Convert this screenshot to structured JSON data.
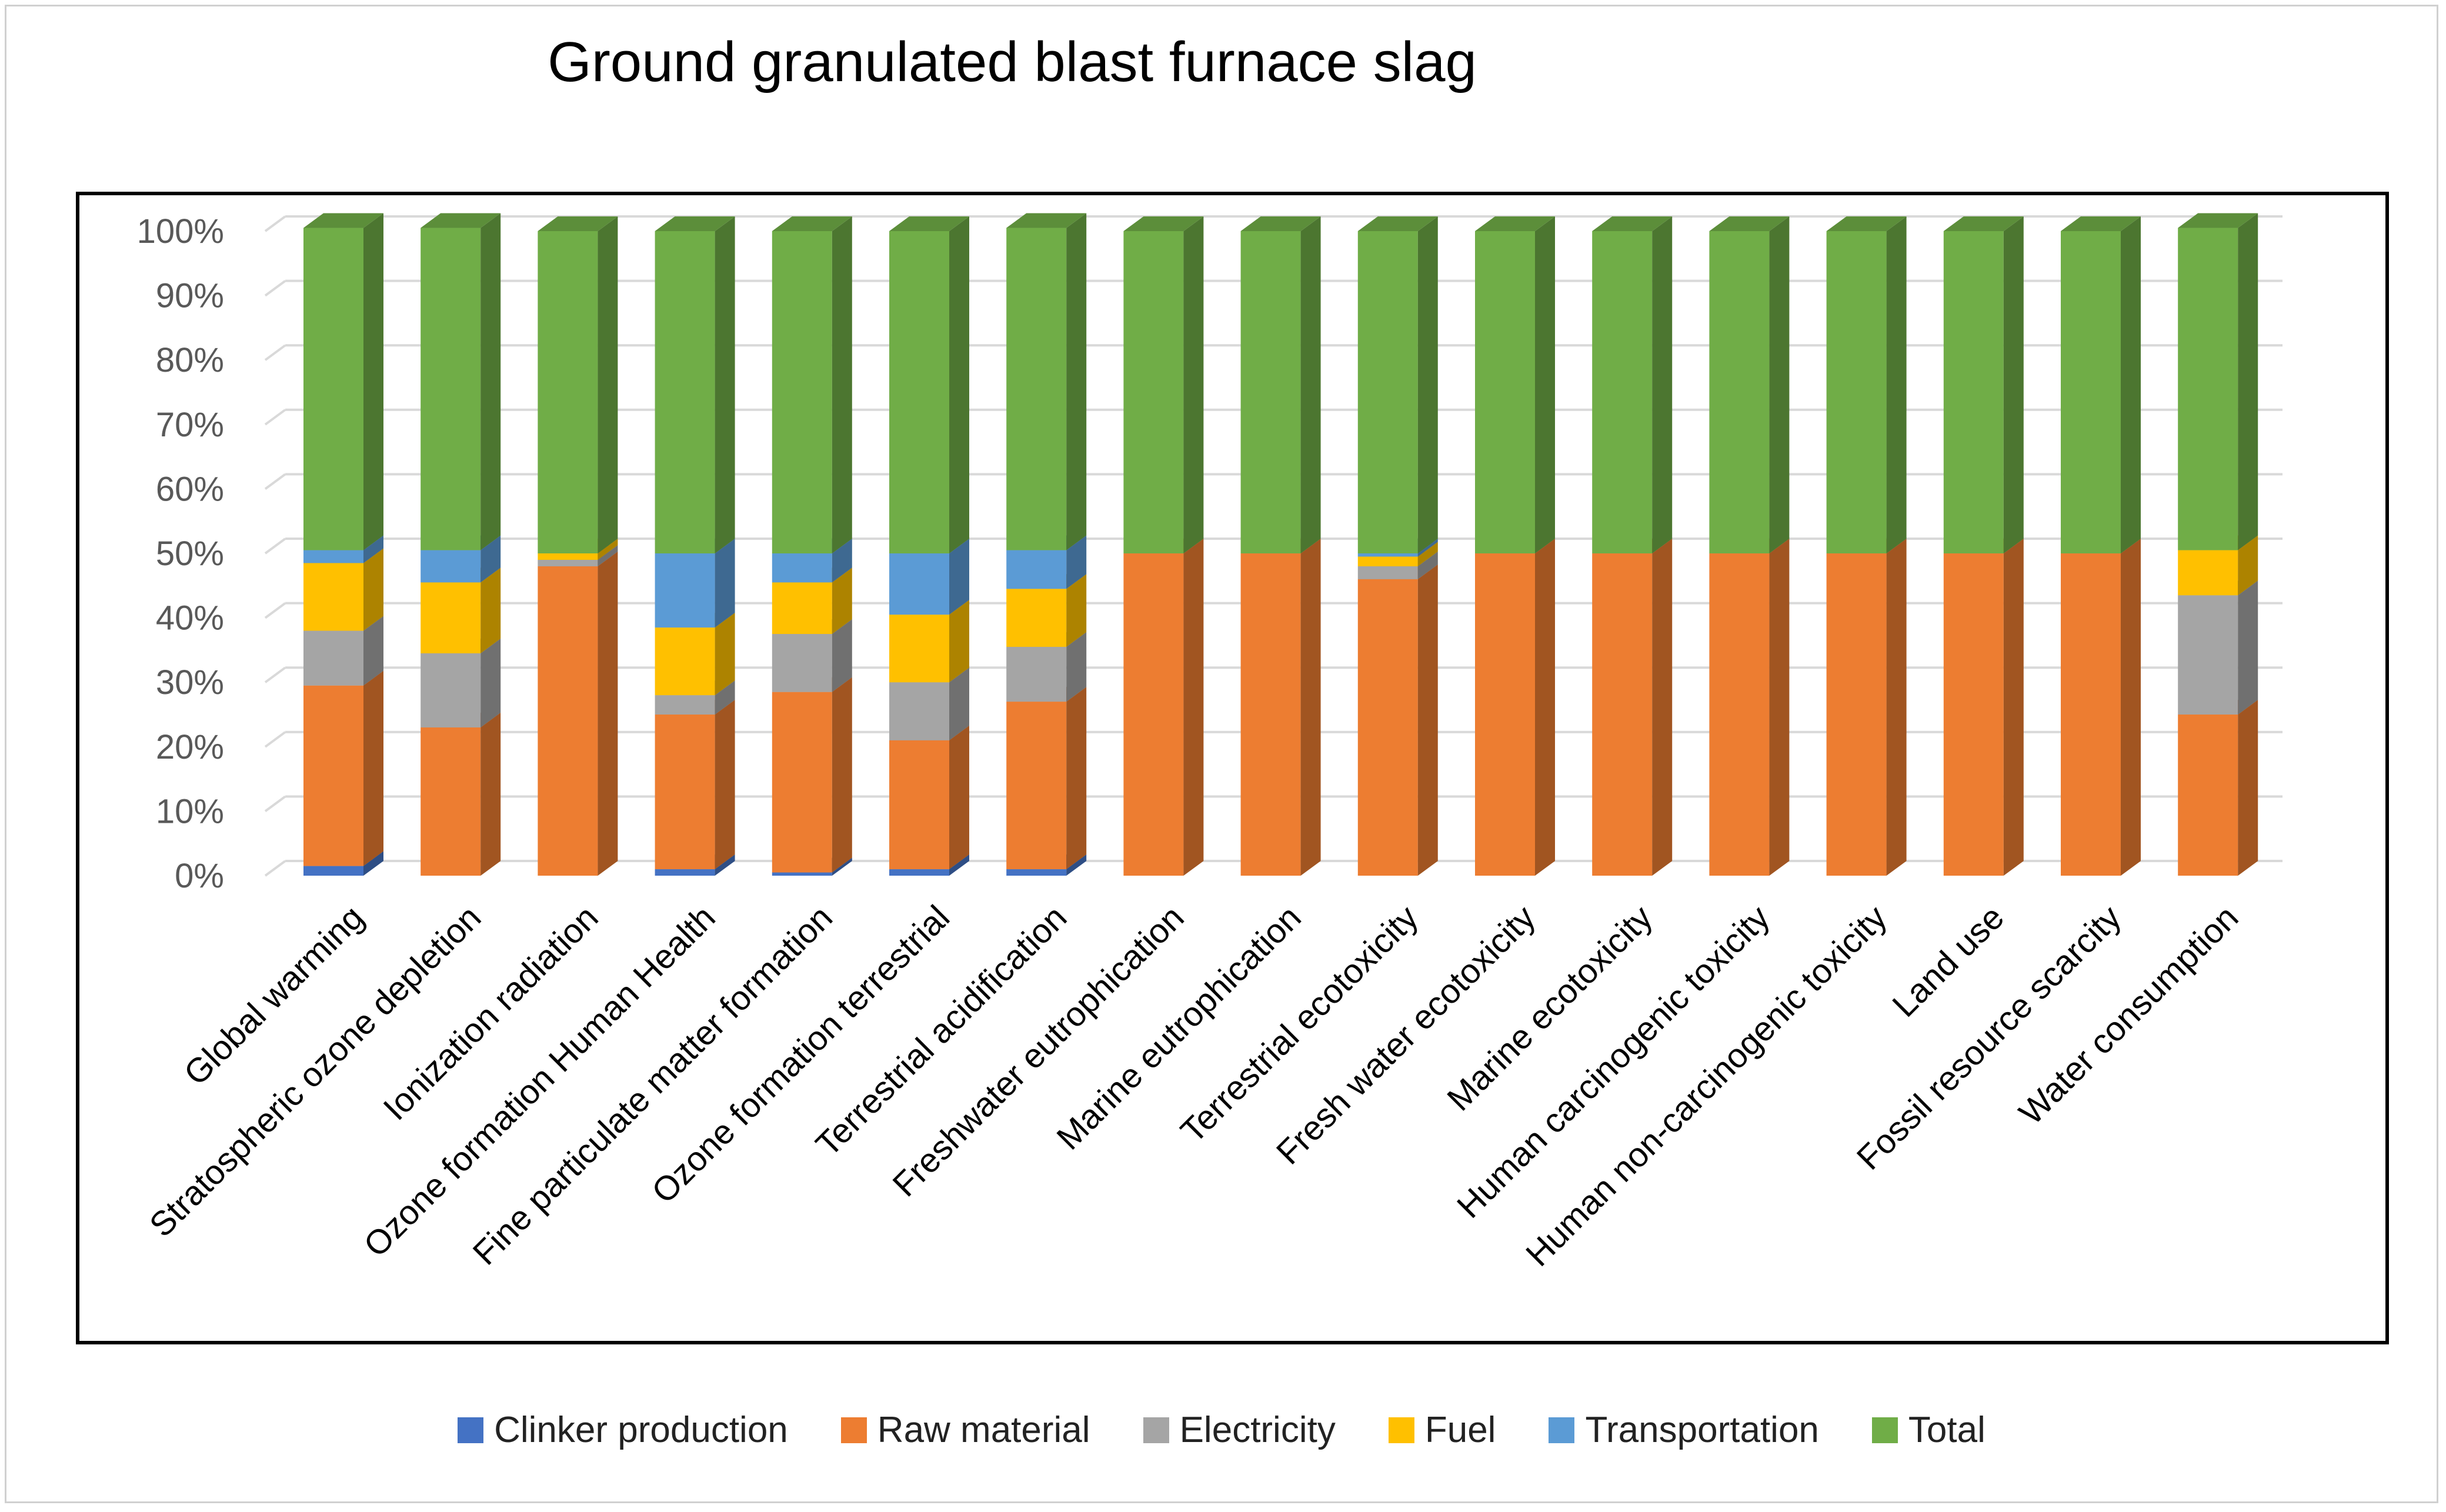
{
  "chart_data": {
    "type": "bar",
    "stacked": true,
    "three_d": true,
    "title": "Ground granulated blast furnace slag",
    "xlabel": "",
    "ylabel": "",
    "ylim": [
      0,
      100
    ],
    "y_ticks": [
      "0%",
      "10%",
      "20%",
      "30%",
      "40%",
      "50%",
      "60%",
      "70%",
      "80%",
      "90%",
      "100%"
    ],
    "legend_position": "bottom",
    "categories": [
      "Global warming",
      "Stratospheric ozone depletion",
      "Ionization radiation",
      "Ozone formation Human Health",
      "Fine particulate matter formation",
      "Ozone formation terrestrial",
      "Terrestrial acidification",
      "Freshwater eutrophication",
      "Marine eutrophication",
      "Terrestrial ecotoxicity",
      "Fresh water ecotoxicity",
      "Marine ecotoxicity",
      "Human carcinogenic toxicity",
      "Human non-carcinogenic toxicity",
      "Land use",
      "Fossil resource scarcity",
      "Water consumption"
    ],
    "series": [
      {
        "name": "Clinker production",
        "color": "#4472C4",
        "values": [
          1.5,
          0,
          0,
          1,
          0.5,
          1,
          1,
          0,
          0,
          0,
          0,
          0,
          0,
          0,
          0,
          0,
          0
        ]
      },
      {
        "name": "Raw material",
        "color": "#ED7D31",
        "values": [
          28,
          23,
          48,
          24,
          28,
          20,
          26,
          50,
          50,
          46,
          50,
          50,
          50,
          50,
          50,
          50,
          25
        ]
      },
      {
        "name": "Electricity",
        "color": "#A5A5A5",
        "values": [
          8.5,
          11.5,
          1,
          3,
          9,
          9,
          8.5,
          0,
          0,
          2,
          0,
          0,
          0,
          0,
          0,
          0,
          18.5
        ]
      },
      {
        "name": "Fuel",
        "color": "#FFC000",
        "values": [
          10.5,
          11,
          1,
          10.5,
          8,
          10.5,
          9,
          0,
          0,
          1.5,
          0,
          0,
          0,
          0,
          0,
          0,
          7
        ]
      },
      {
        "name": "Transportation",
        "color": "#5B9BD5",
        "values": [
          2,
          5,
          0,
          11.5,
          4.5,
          9.5,
          6,
          0,
          0,
          0.5,
          0,
          0,
          0,
          0,
          0,
          0,
          0
        ]
      },
      {
        "name": "Total",
        "color": "#70AD47",
        "values": [
          50,
          50,
          50,
          50,
          50,
          50,
          50,
          50,
          50,
          50,
          50,
          50,
          50,
          50,
          50,
          50,
          50
        ]
      }
    ],
    "gridlines": true
  }
}
